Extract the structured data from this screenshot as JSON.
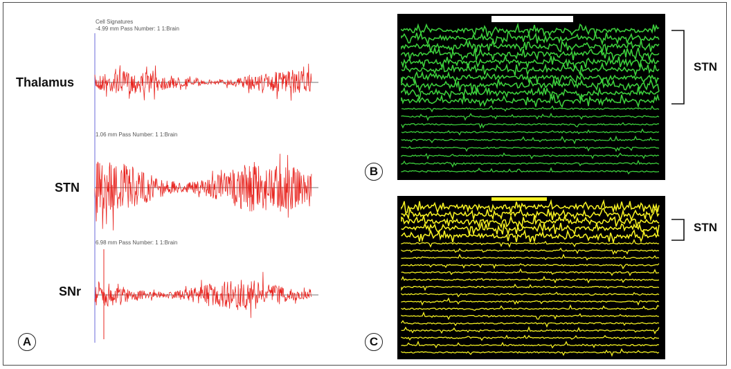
{
  "panels": {
    "a": {
      "label": "A",
      "header": "Cell Signatures",
      "traces": [
        {
          "region": "Thalamus",
          "depth_text": "-4.99 mm  Pass Number: 1  1:Brain",
          "amplitude": 0.45
        },
        {
          "region": "STN",
          "depth_text": "1.06 mm  Pass Number: 1  1:Brain",
          "amplitude": 1.0
        },
        {
          "region": "SNr",
          "depth_text": "6.98 mm  Pass Number: 1  1:Brain",
          "amplitude": 0.5
        }
      ],
      "trace_color": "#e8231e"
    },
    "b": {
      "label": "B",
      "trace_color": "#3ccf3c",
      "bracket_label": "STN"
    },
    "c": {
      "label": "C",
      "trace_color": "#f3ef22",
      "bracket_label": "STN"
    }
  }
}
